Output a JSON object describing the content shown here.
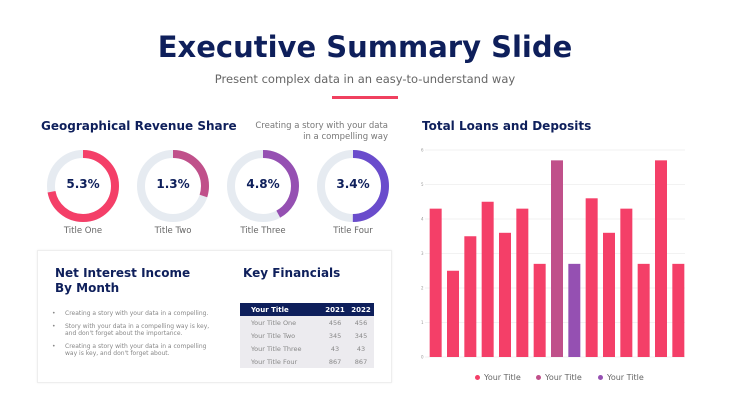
{
  "header": {
    "title": "Executive Summary Slide",
    "subtitle": "Present complex data in an easy-to-understand way",
    "accent_color": "#f0405f"
  },
  "geo": {
    "title": "Geographical Revenue Share",
    "note": "Creating a story with your data in a compelling way",
    "donuts": [
      {
        "value": "5.3%",
        "label": "Title One",
        "fill": 0.72,
        "color": "#f43f68"
      },
      {
        "value": "1.3%",
        "label": "Title Two",
        "fill": 0.3,
        "color": "#c0508a"
      },
      {
        "value": "4.8%",
        "label": "Title Three",
        "fill": 0.42,
        "color": "#9550b2"
      },
      {
        "value": "3.4%",
        "label": "Title Four",
        "fill": 0.5,
        "color": "#6a4ccc"
      }
    ],
    "track_color": "#e6ebf1"
  },
  "nii": {
    "title_line1": "Net Interest Income",
    "title_line2": "By Month",
    "bullets": [
      "Creating a story with your data in a compelling.",
      "Story with your data in a compelling way is key, and don't forget about the importance.",
      "Creating a story with your data in a compelling way is key, and don't forget about."
    ]
  },
  "financials": {
    "title": "Key Financials",
    "headers": [
      "Your Title",
      "2021",
      "2022"
    ],
    "rows": [
      [
        "Your Title One",
        "456",
        "456"
      ],
      [
        "Your Title Two",
        "345",
        "345"
      ],
      [
        "Your Title Three",
        "43",
        "43"
      ],
      [
        "Your Title Four",
        "867",
        "867"
      ]
    ]
  },
  "chart_data": {
    "type": "bar",
    "title": "Total Loans and Deposits",
    "ylim": [
      0,
      6
    ],
    "yticks": [
      "0",
      "1",
      "2",
      "3",
      "4",
      "5",
      "6"
    ],
    "grid": true,
    "legend_position": "bottom",
    "values": [
      4.3,
      2.5,
      3.5,
      4.5,
      3.6,
      4.3,
      2.7,
      5.7,
      2.7,
      4.6,
      3.6,
      4.3,
      2.7,
      5.7,
      2.7
    ],
    "bar_series": [
      0,
      0,
      0,
      0,
      0,
      0,
      0,
      1,
      2,
      0,
      0,
      0,
      0,
      0,
      0
    ],
    "series": [
      {
        "name": "Your Title",
        "color": "#f43f68"
      },
      {
        "name": "Your Title",
        "color": "#c0508a"
      },
      {
        "name": "Your Title",
        "color": "#9550b2"
      }
    ]
  }
}
